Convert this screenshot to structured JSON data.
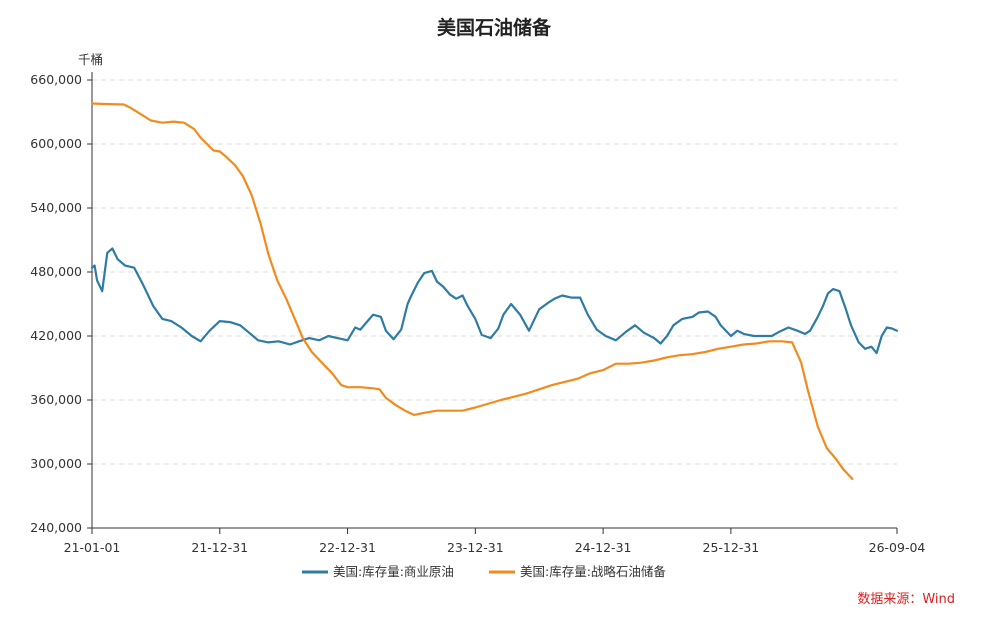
{
  "chart_data": {
    "type": "line",
    "title": "美国石油储备",
    "ylabel": "千桶",
    "xlabel": "",
    "ylim": [
      240000,
      660000
    ],
    "yticks": [
      "240,000",
      "300,000",
      "360,000",
      "420,000",
      "480,000",
      "540,000",
      "600,000",
      "660,000"
    ],
    "xticks": [
      "21-01-01",
      "21-12-31",
      "22-12-31",
      "23-12-31",
      "24-12-31",
      "25-12-31",
      "26-09-04"
    ],
    "grid": "horizontal-dashed",
    "legend": "bottom-center",
    "source": "数据来源：Wind",
    "series": [
      {
        "name": "美国:库存量:商业原油",
        "color": "#2e7ba4",
        "points": [
          [
            0.0,
            484000
          ],
          [
            0.02,
            486000
          ],
          [
            0.04,
            472000
          ],
          [
            0.08,
            462000
          ],
          [
            0.12,
            498000
          ],
          [
            0.16,
            502000
          ],
          [
            0.2,
            492000
          ],
          [
            0.26,
            486000
          ],
          [
            0.33,
            484000
          ],
          [
            0.4,
            468000
          ],
          [
            0.48,
            448000
          ],
          [
            0.55,
            436000
          ],
          [
            0.62,
            434000
          ],
          [
            0.7,
            428000
          ],
          [
            0.78,
            420000
          ],
          [
            0.85,
            415000
          ],
          [
            0.92,
            425000
          ],
          [
            1.0,
            434000
          ],
          [
            1.08,
            433000
          ],
          [
            1.16,
            430000
          ],
          [
            1.22,
            424000
          ],
          [
            1.3,
            416000
          ],
          [
            1.38,
            414000
          ],
          [
            1.46,
            415000
          ],
          [
            1.55,
            412000
          ],
          [
            1.62,
            415000
          ],
          [
            1.7,
            418000
          ],
          [
            1.78,
            416000
          ],
          [
            1.85,
            420000
          ],
          [
            1.92,
            418000
          ],
          [
            2.0,
            416000
          ],
          [
            2.06,
            428000
          ],
          [
            2.1,
            426000
          ],
          [
            2.15,
            433000
          ],
          [
            2.2,
            440000
          ],
          [
            2.26,
            438000
          ],
          [
            2.3,
            425000
          ],
          [
            2.36,
            417000
          ],
          [
            2.42,
            426000
          ],
          [
            2.47,
            450000
          ],
          [
            2.5,
            458000
          ],
          [
            2.55,
            470000
          ],
          [
            2.6,
            479000
          ],
          [
            2.66,
            481000
          ],
          [
            2.7,
            471000
          ],
          [
            2.75,
            466000
          ],
          [
            2.8,
            459000
          ],
          [
            2.85,
            455000
          ],
          [
            2.9,
            458000
          ],
          [
            2.94,
            448000
          ],
          [
            3.0,
            436000
          ],
          [
            3.05,
            421000
          ],
          [
            3.12,
            418000
          ],
          [
            3.18,
            427000
          ],
          [
            3.22,
            440000
          ],
          [
            3.28,
            450000
          ],
          [
            3.35,
            440000
          ],
          [
            3.42,
            425000
          ],
          [
            3.5,
            445000
          ],
          [
            3.58,
            452000
          ],
          [
            3.62,
            455000
          ],
          [
            3.68,
            458000
          ],
          [
            3.75,
            456000
          ],
          [
            3.82,
            456000
          ],
          [
            3.88,
            440000
          ],
          [
            3.95,
            426000
          ],
          [
            4.02,
            420000
          ],
          [
            4.1,
            416000
          ],
          [
            4.18,
            424000
          ],
          [
            4.25,
            430000
          ],
          [
            4.32,
            423000
          ],
          [
            4.4,
            418000
          ],
          [
            4.45,
            413000
          ],
          [
            4.5,
            420000
          ],
          [
            4.55,
            430000
          ],
          [
            4.62,
            436000
          ],
          [
            4.7,
            438000
          ],
          [
            4.75,
            442000
          ],
          [
            4.82,
            443000
          ],
          [
            4.88,
            438000
          ],
          [
            4.92,
            430000
          ],
          [
            5.0,
            420000
          ],
          [
            5.05,
            425000
          ],
          [
            5.1,
            422000
          ],
          [
            5.18,
            420000
          ],
          [
            5.25,
            420000
          ],
          [
            5.32,
            420000
          ],
          [
            5.38,
            424000
          ],
          [
            5.45,
            428000
          ],
          [
            5.52,
            425000
          ],
          [
            5.58,
            422000
          ],
          [
            5.62,
            425000
          ],
          [
            5.68,
            438000
          ],
          [
            5.72,
            448000
          ],
          [
            5.76,
            460000
          ],
          [
            5.8,
            464000
          ],
          [
            5.85,
            462000
          ],
          [
            5.9,
            445000
          ],
          [
            5.94,
            430000
          ],
          [
            6.0,
            414000
          ],
          [
            6.05,
            408000
          ],
          [
            6.1,
            410000
          ],
          [
            6.14,
            404000
          ],
          [
            6.18,
            420000
          ],
          [
            6.22,
            428000
          ],
          [
            6.26,
            427000
          ],
          [
            6.3,
            425000
          ]
        ]
      },
      {
        "name": "美国:库存量:战略石油储备",
        "color": "#f28b1e",
        "points": [
          [
            0.0,
            638000
          ],
          [
            0.1,
            637500
          ],
          [
            0.25,
            637000
          ],
          [
            0.3,
            634000
          ],
          [
            0.38,
            628000
          ],
          [
            0.46,
            622000
          ],
          [
            0.55,
            620000
          ],
          [
            0.64,
            621000
          ],
          [
            0.72,
            620000
          ],
          [
            0.8,
            614000
          ],
          [
            0.85,
            606000
          ],
          [
            0.9,
            600000
          ],
          [
            0.95,
            594000
          ],
          [
            1.0,
            593000
          ],
          [
            1.05,
            588000
          ],
          [
            1.12,
            580000
          ],
          [
            1.18,
            570000
          ],
          [
            1.25,
            552000
          ],
          [
            1.32,
            525000
          ],
          [
            1.38,
            497000
          ],
          [
            1.45,
            472000
          ],
          [
            1.52,
            455000
          ],
          [
            1.58,
            438000
          ],
          [
            1.65,
            418000
          ],
          [
            1.72,
            405000
          ],
          [
            1.8,
            395000
          ],
          [
            1.88,
            385000
          ],
          [
            1.95,
            374000
          ],
          [
            2.0,
            372000
          ],
          [
            2.1,
            372000
          ],
          [
            2.2,
            371000
          ],
          [
            2.25,
            370000
          ],
          [
            2.3,
            362000
          ],
          [
            2.38,
            355000
          ],
          [
            2.45,
            350000
          ],
          [
            2.52,
            346000
          ],
          [
            2.6,
            348000
          ],
          [
            2.7,
            350000
          ],
          [
            2.8,
            350000
          ],
          [
            2.9,
            350000
          ],
          [
            3.0,
            353000
          ],
          [
            3.2,
            360000
          ],
          [
            3.4,
            366000
          ],
          [
            3.6,
            374000
          ],
          [
            3.8,
            380000
          ],
          [
            3.9,
            385000
          ],
          [
            4.0,
            388000
          ],
          [
            4.1,
            394000
          ],
          [
            4.2,
            394000
          ],
          [
            4.3,
            395000
          ],
          [
            4.4,
            397000
          ],
          [
            4.5,
            400000
          ],
          [
            4.6,
            402000
          ],
          [
            4.7,
            403000
          ],
          [
            4.8,
            405000
          ],
          [
            4.9,
            408000
          ],
          [
            5.0,
            410000
          ],
          [
            5.1,
            412000
          ],
          [
            5.2,
            413000
          ],
          [
            5.3,
            415000
          ],
          [
            5.4,
            415000
          ],
          [
            5.48,
            414000
          ],
          [
            5.55,
            395000
          ],
          [
            5.6,
            370000
          ],
          [
            5.68,
            335000
          ],
          [
            5.75,
            315000
          ],
          [
            5.82,
            305000
          ],
          [
            5.88,
            295000
          ],
          [
            5.92,
            290000
          ],
          [
            5.95,
            286000
          ]
        ]
      }
    ]
  }
}
